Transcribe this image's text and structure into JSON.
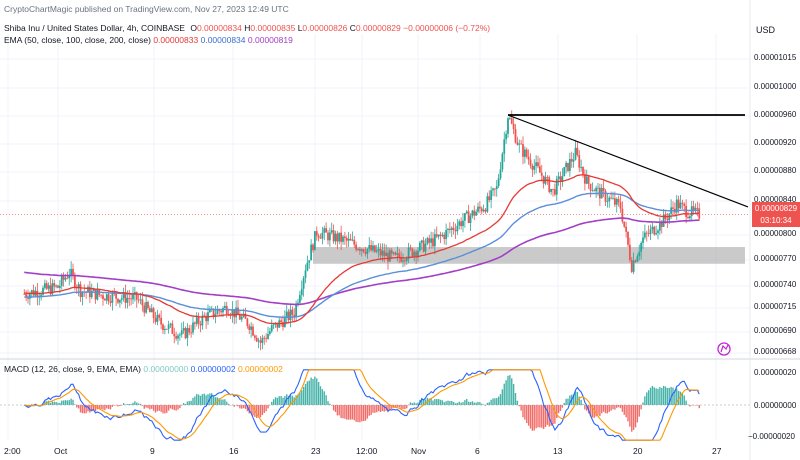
{
  "header": {
    "published": "CryptoChartMagic published on TradingView.com, Nov 27, 2023 12:49 UTC",
    "symbol_line": "Shiba Inu / United States Dollar, 4h, COINBASE",
    "ohlc": {
      "o_label": "O",
      "o_value": "0.00000834",
      "h_label": "H",
      "h_value": "0.00000835",
      "l_label": "L",
      "l_value": "0.00000826",
      "c_label": "C",
      "c_value": "0.00000829",
      "change": "−0.00000006 (−0.72%)"
    },
    "ema_label": "EMA (50, close, 100, close, 200, close)",
    "ema_values": [
      "0.00000833",
      "0.00000834",
      "0.00000819"
    ],
    "currency": "USD"
  },
  "price_axis": {
    "ticks": [
      "0.00001015",
      "0.00001000",
      "0.00000960",
      "0.00000920",
      "0.00000880",
      "0.00000840",
      "0.00000800",
      "0.00000770",
      "0.00000740",
      "0.00000715",
      "0.00000690",
      "0.00000668"
    ],
    "last_price_tag": "0.00000829",
    "countdown_tag": "03:10:34"
  },
  "time_axis": {
    "labels": [
      "2:00",
      "Oct",
      "9",
      "16",
      "23",
      "12:00",
      "Nov",
      "6",
      "13",
      "20",
      "27"
    ]
  },
  "macd": {
    "label": "MACD (12, 26, close, 9, EMA, EMA)",
    "values": [
      "0.00000000",
      "0.00000002",
      "0.00000002"
    ],
    "ticks": [
      "0.00000020",
      "0.00000000",
      "−0.00000020"
    ]
  },
  "colors": {
    "up": "#26a69a",
    "down": "#ef5350",
    "ema50": "#e53935",
    "ema100": "#5b8fd8",
    "ema200": "#a23fc6",
    "macd_line": "#2962ff",
    "signal_line": "#ff9800",
    "zone": "#9e9e9e",
    "trendline": "#000000"
  },
  "chart_data": {
    "type": "candlestick",
    "title": "Shiba Inu / United States Dollar, 4h, COINBASE",
    "x_labels": [
      "2:00",
      "Oct",
      "9",
      "16",
      "23",
      "12:00",
      "Nov",
      "6",
      "13",
      "20",
      "27"
    ],
    "y_range": [
      6.6e-06,
      1.02e-05
    ],
    "price_path": [
      [
        "Sep 28",
        7.34e-06
      ],
      [
        "Oct 1",
        7.42e-06
      ],
      [
        "Oct 2",
        7.6e-06
      ],
      [
        "Oct 3",
        7.38e-06
      ],
      [
        "Oct 5",
        7.32e-06
      ],
      [
        "Oct 8",
        7.28e-06
      ],
      [
        "Oct 10",
        7e-06
      ],
      [
        "Oct 12",
        6.84e-06
      ],
      [
        "Oct 14",
        7.06e-06
      ],
      [
        "Oct 16",
        7.18e-06
      ],
      [
        "Oct 18",
        6.98e-06
      ],
      [
        "Oct 19",
        6.76e-06
      ],
      [
        "Oct 20",
        6.92e-06
      ],
      [
        "Oct 22",
        7.12e-06
      ],
      [
        "Oct 23",
        7.66e-06
      ],
      [
        "Oct 24",
        8.08e-06
      ],
      [
        "Oct 26",
        8e-06
      ],
      [
        "Oct 28",
        7.9e-06
      ],
      [
        "Oct 31",
        7.76e-06
      ],
      [
        "Nov 2",
        7.88e-06
      ],
      [
        "Nov 4",
        8.02e-06
      ],
      [
        "Nov 6",
        8.22e-06
      ],
      [
        "Nov 8",
        8.4e-06
      ],
      [
        "Nov 9",
        8.6e-06
      ],
      [
        "Nov 10",
        9.48e-06
      ],
      [
        "Nov 11",
        9.1e-06
      ],
      [
        "Nov 13",
        8.76e-06
      ],
      [
        "Nov 14",
        8.56e-06
      ],
      [
        "Nov 15",
        8.8e-06
      ],
      [
        "Nov 16",
        9.02e-06
      ],
      [
        "Nov 17",
        8.68e-06
      ],
      [
        "Nov 18",
        8.56e-06
      ],
      [
        "Nov 20",
        8.38e-06
      ],
      [
        "Nov 21",
        7.68e-06
      ],
      [
        "Nov 22",
        8e-06
      ],
      [
        "Nov 24",
        8.24e-06
      ],
      [
        "Nov 25",
        8.42e-06
      ],
      [
        "Nov 26",
        8.32e-06
      ],
      [
        "Nov 27",
        8.29e-06
      ]
    ],
    "ema_series": [
      {
        "name": "EMA 50",
        "last": 8.33e-06
      },
      {
        "name": "EMA 100",
        "last": 8.34e-06
      },
      {
        "name": "EMA 200",
        "last": 8.19e-06
      }
    ],
    "annotations": {
      "descending_trendline": [
        [
          "Nov 10",
          9.48e-06
        ],
        [
          "Nov 28",
          8.38e-06
        ]
      ],
      "horizontal_resistance": 9.48e-06,
      "demand_zone": [
        7.7e-06,
        7.9e-06
      ]
    },
    "macd_range": [
      -2e-07,
      2e-07
    ]
  }
}
